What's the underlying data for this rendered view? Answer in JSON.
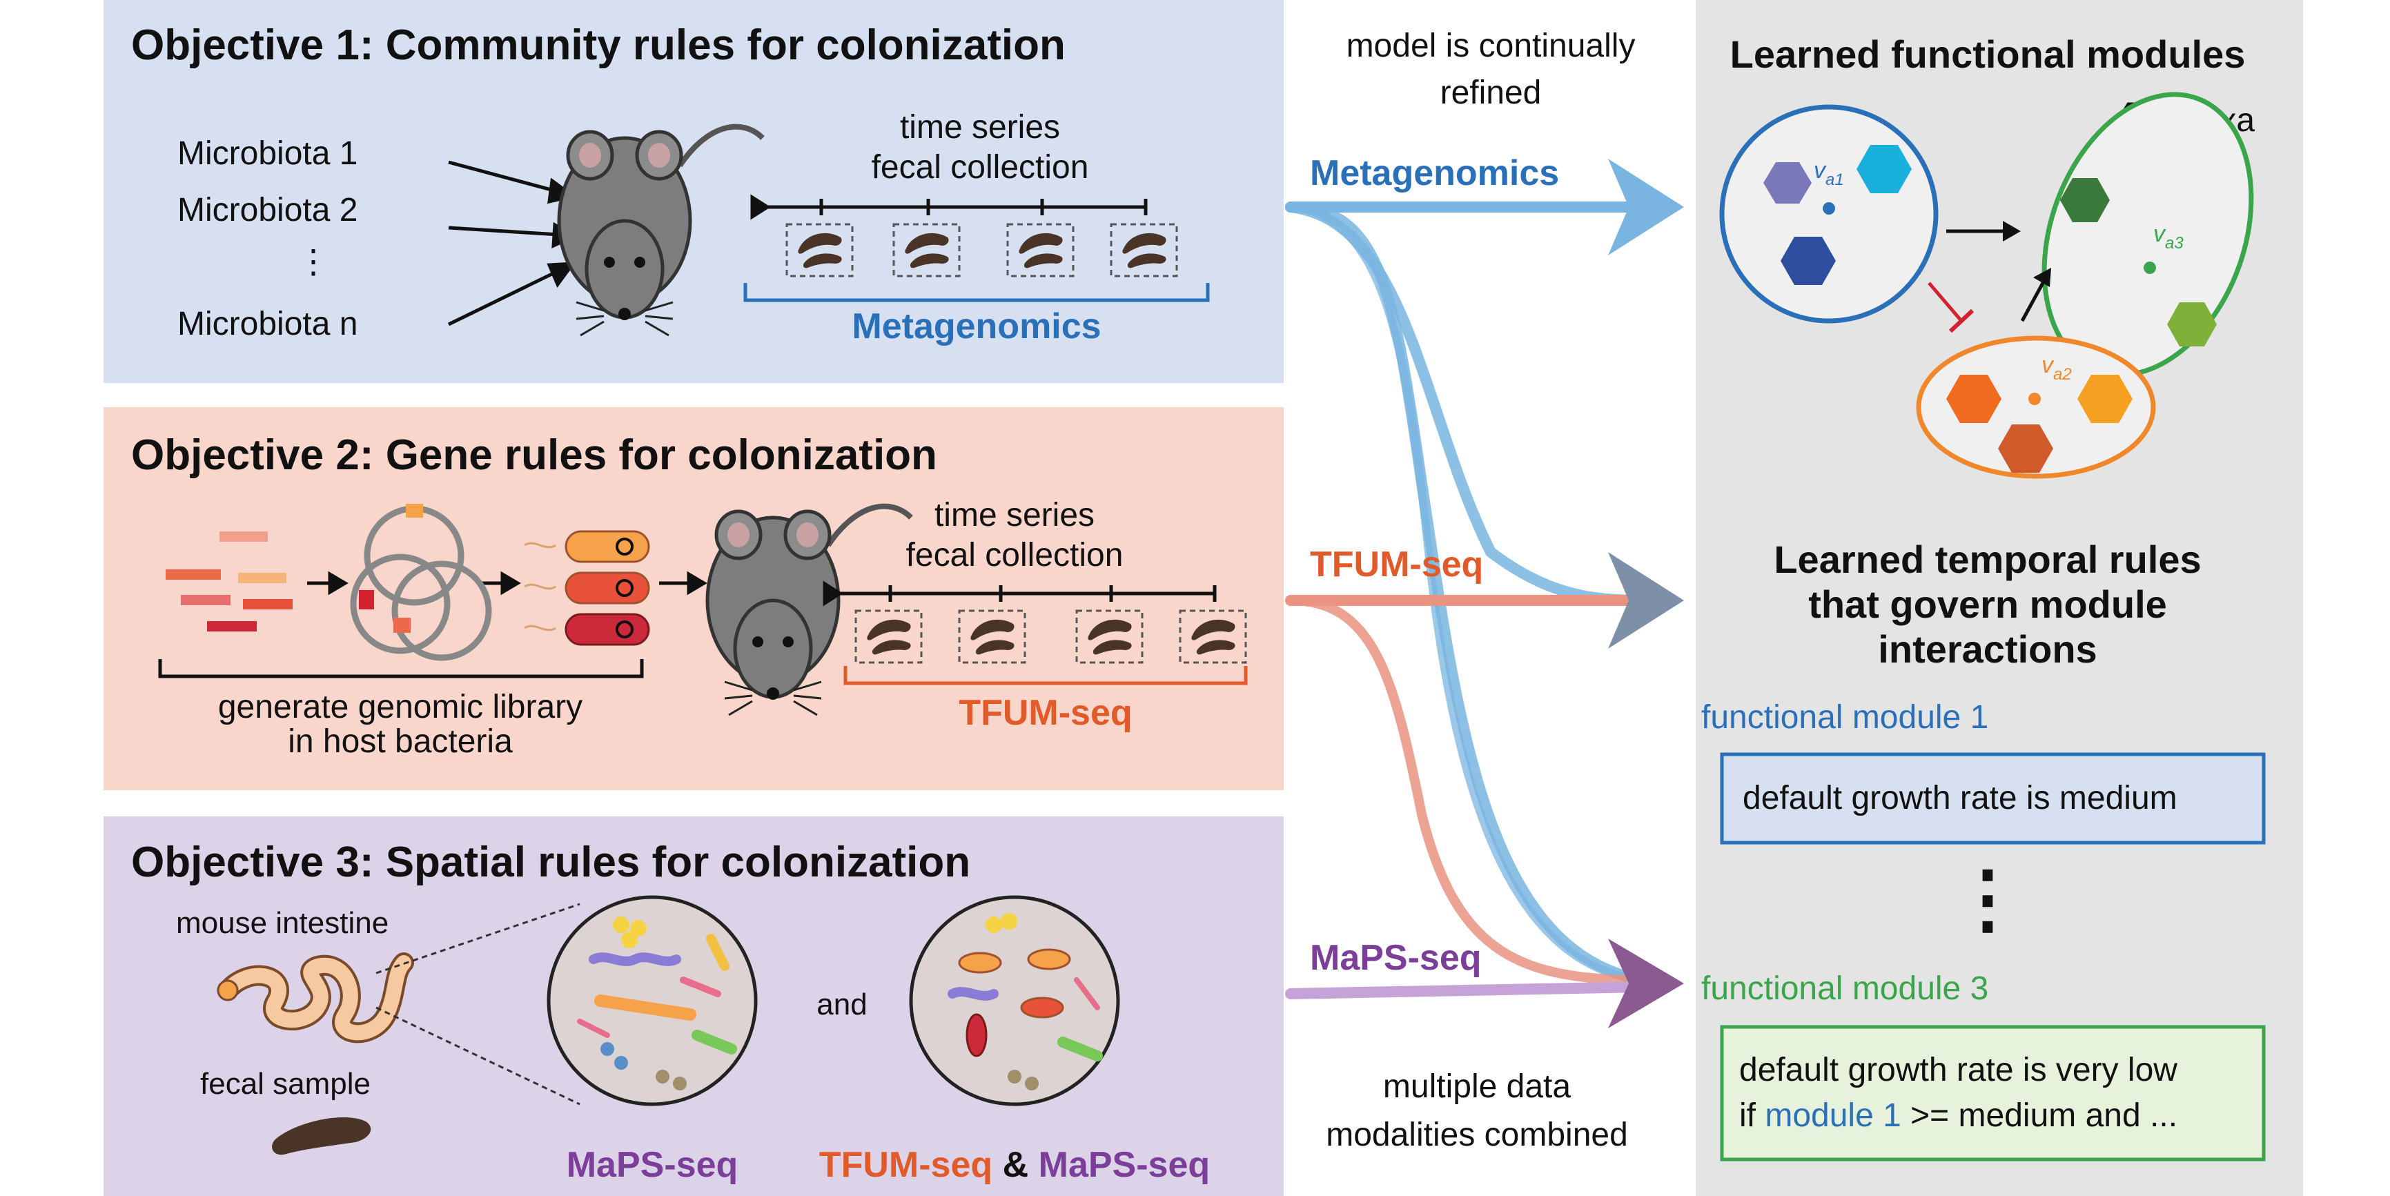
{
  "colors": {
    "obj1_bg": "#d6e0f1",
    "obj2_bg": "#f9d6cb",
    "obj3_bg": "#dcd3e8",
    "right_bg": "#e4e4e5",
    "blue": "#2a70b8",
    "light_blue": "#79b5e0",
    "orange": "#e05a2a",
    "salmon": "#ea9380",
    "purple": "#7b3f99",
    "green": "#3aa54a",
    "red": "#d3212f"
  },
  "objective1": {
    "title": "Objective 1: Community rules for colonization",
    "microbiota": [
      "Microbiota 1",
      "Microbiota 2",
      "⋮",
      "Microbiota n"
    ],
    "timeseries_line1": "time series",
    "timeseries_line2": "fecal collection",
    "method": "Metagenomics"
  },
  "objective2": {
    "title": "Objective 2: Gene rules for colonization",
    "library_line1": "generate genomic library",
    "library_line2": "in host bacteria",
    "timeseries_line1": "time series",
    "timeseries_line2": "fecal collection",
    "method": "TFUM-seq"
  },
  "objective3": {
    "title": "Objective 3: Spatial rules for colonization",
    "intestine_label": "mouse intestine",
    "fecal_label": "fecal sample",
    "and_label": "and",
    "method_left": "MaPS-seq",
    "method_right_a": "TFUM-seq",
    "method_right_amp": " & ",
    "method_right_b": "MaPS-seq"
  },
  "middle": {
    "top_line1": "model is continually",
    "top_line2": "refined",
    "stream1": "Metagenomics",
    "stream2": "TFUM-seq",
    "stream3": "MaPS-seq",
    "bottom_line1": "multiple data",
    "bottom_line2": "modalities combined"
  },
  "right": {
    "modules_title": "Learned functional modules",
    "taxa_legend": "= taxa",
    "va1": "v",
    "va1_sub": "a1",
    "va2": "v",
    "va2_sub": "a2",
    "va3": "v",
    "va3_sub": "a3",
    "rules_line1": "Learned temporal rules",
    "rules_line2": "that govern module",
    "rules_line3": "interactions",
    "module1_label": "functional module 1",
    "module1_rule": "default growth rate is medium",
    "ellipsis": "⋮",
    "module3_label": "functional module 3",
    "module3_rule_line1": "default growth rate is very low",
    "module3_rule_prefix": "if ",
    "module3_rule_highlight": "module 1",
    "module3_rule_suffix": " >= medium and ..."
  }
}
